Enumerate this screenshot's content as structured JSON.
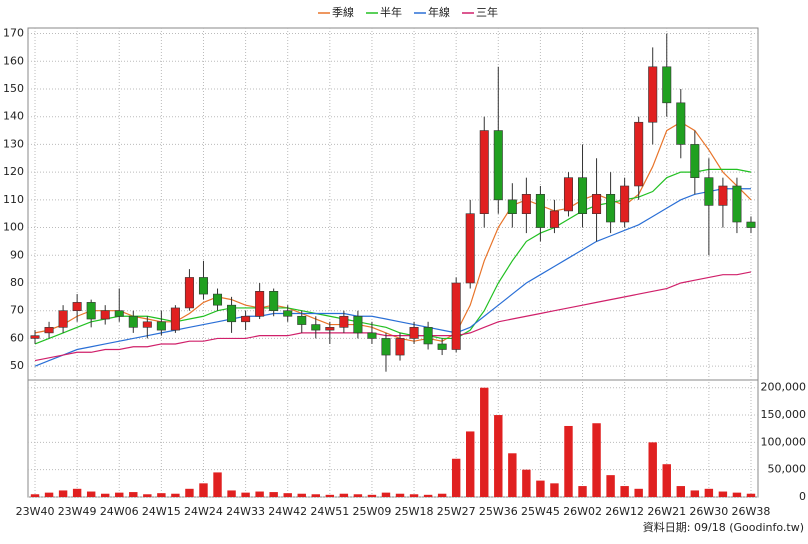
{
  "chart_data": {
    "type": "candlestick",
    "legend": [
      {
        "name": "季線",
        "color": "#e8742a"
      },
      {
        "name": "半年",
        "color": "#22c022"
      },
      {
        "name": "年線",
        "color": "#2a6fd6"
      },
      {
        "name": "三年",
        "color": "#d0206a"
      }
    ],
    "legend_position": "top",
    "categories": [
      "23W40",
      null,
      null,
      "23W49",
      null,
      null,
      "24W06",
      null,
      null,
      "24W15",
      null,
      null,
      "24W24",
      null,
      null,
      "24W33",
      null,
      null,
      "24W42",
      null,
      null,
      "24W51",
      null,
      null,
      "25W09",
      null,
      null,
      "25W18",
      null,
      null,
      "25W27",
      null,
      null,
      "25W36",
      null,
      null,
      "25W45",
      null,
      null,
      "26W02",
      null,
      null,
      "26W12",
      null,
      null,
      "26W21",
      null,
      null,
      "26W30",
      null,
      null,
      "26W38"
    ],
    "open": [
      60,
      62,
      64,
      70,
      73,
      67,
      70,
      68,
      64,
      66,
      63,
      71,
      82,
      76,
      72,
      66,
      68,
      77,
      70,
      68,
      65,
      63,
      64,
      68,
      62,
      60,
      54,
      60,
      64,
      58,
      56,
      80,
      105,
      135,
      110,
      105,
      112,
      100,
      106,
      118,
      105,
      112,
      102,
      115,
      138,
      158,
      145,
      130,
      118,
      108,
      115,
      102
    ],
    "high": [
      63,
      66,
      72,
      76,
      74,
      72,
      78,
      70,
      68,
      70,
      72,
      85,
      88,
      78,
      75,
      70,
      80,
      78,
      72,
      70,
      68,
      66,
      70,
      70,
      66,
      62,
      62,
      66,
      66,
      60,
      82,
      110,
      140,
      158,
      116,
      118,
      115,
      110,
      120,
      130,
      125,
      120,
      118,
      140,
      165,
      170,
      150,
      135,
      125,
      118,
      118,
      104
    ],
    "low": [
      58,
      60,
      62,
      66,
      64,
      65,
      66,
      62,
      60,
      61,
      62,
      70,
      74,
      70,
      62,
      63,
      67,
      68,
      66,
      62,
      60,
      58,
      62,
      60,
      58,
      48,
      52,
      58,
      56,
      54,
      55,
      78,
      100,
      105,
      100,
      98,
      95,
      98,
      104,
      100,
      95,
      98,
      100,
      110,
      130,
      140,
      125,
      112,
      90,
      100,
      98,
      98
    ],
    "close": [
      61,
      64,
      70,
      73,
      67,
      70,
      68,
      64,
      66,
      63,
      71,
      82,
      76,
      72,
      66,
      68,
      77,
      70,
      68,
      65,
      63,
      64,
      68,
      62,
      60,
      54,
      60,
      64,
      58,
      56,
      80,
      105,
      135,
      110,
      105,
      112,
      100,
      106,
      118,
      105,
      112,
      102,
      115,
      138,
      158,
      145,
      130,
      118,
      108,
      115,
      102,
      100
    ],
    "up_color": "#e02020",
    "down_color": "#20a020",
    "ma_series": [
      {
        "name": "季線",
        "color": "#e8742a",
        "values": [
          62,
          63,
          65,
          68,
          70,
          70,
          70,
          68,
          67,
          66,
          66,
          69,
          73,
          75,
          74,
          72,
          71,
          72,
          71,
          69,
          67,
          65,
          65,
          65,
          64,
          62,
          60,
          59,
          60,
          59,
          62,
          72,
          88,
          100,
          108,
          110,
          108,
          106,
          107,
          110,
          112,
          110,
          108,
          112,
          122,
          135,
          138,
          135,
          128,
          120,
          115,
          110
        ]
      },
      {
        "name": "半年",
        "color": "#22c022",
        "values": [
          58,
          60,
          62,
          64,
          66,
          67,
          68,
          68,
          68,
          67,
          66,
          67,
          68,
          70,
          71,
          71,
          71,
          71,
          71,
          70,
          69,
          68,
          67,
          66,
          65,
          64,
          62,
          61,
          61,
          60,
          60,
          63,
          70,
          80,
          88,
          95,
          98,
          100,
          103,
          106,
          108,
          109,
          110,
          111,
          113,
          118,
          120,
          120,
          121,
          121,
          121,
          120
        ]
      },
      {
        "name": "年線",
        "color": "#2a6fd6",
        "values": [
          50,
          52,
          54,
          56,
          57,
          58,
          59,
          60,
          61,
          62,
          63,
          64,
          65,
          66,
          67,
          68,
          68,
          69,
          69,
          69,
          69,
          69,
          69,
          68,
          68,
          67,
          66,
          65,
          64,
          63,
          62,
          64,
          68,
          72,
          76,
          80,
          83,
          86,
          89,
          92,
          95,
          97,
          99,
          101,
          104,
          107,
          110,
          112,
          113,
          114,
          114,
          114
        ]
      },
      {
        "name": "三年",
        "color": "#d0206a",
        "values": [
          52,
          53,
          54,
          55,
          55,
          56,
          56,
          57,
          57,
          58,
          58,
          59,
          59,
          60,
          60,
          60,
          61,
          61,
          61,
          62,
          62,
          62,
          62,
          62,
          62,
          61,
          61,
          61,
          61,
          61,
          61,
          62,
          64,
          66,
          67,
          68,
          69,
          70,
          71,
          72,
          73,
          74,
          75,
          76,
          77,
          78,
          80,
          81,
          82,
          83,
          83,
          84
        ]
      }
    ],
    "ylim": [
      45,
      172
    ],
    "yticks": [
      50,
      60,
      70,
      80,
      90,
      100,
      110,
      120,
      130,
      140,
      150,
      160,
      170
    ],
    "volume": {
      "color": "#e02020",
      "values": [
        5000,
        8000,
        12000,
        15000,
        10000,
        6000,
        8000,
        9000,
        5000,
        7000,
        6000,
        15000,
        25000,
        45000,
        12000,
        8000,
        10000,
        9000,
        7000,
        6000,
        5000,
        4000,
        6000,
        5000,
        4000,
        8000,
        6000,
        5000,
        4000,
        6000,
        70000,
        120000,
        200000,
        150000,
        80000,
        50000,
        30000,
        25000,
        130000,
        20000,
        135000,
        40000,
        20000,
        15000,
        100000,
        60000,
        20000,
        12000,
        15000,
        10000,
        8000,
        6000
      ],
      "ylim": [
        0,
        205000
      ],
      "yticks": [
        0,
        {
          "value": 50000,
          "label": "50,000"
        },
        {
          "value": 100000,
          "label": "100,000"
        },
        {
          "value": 150000,
          "label": "150,000"
        },
        {
          "value": 200000,
          "label": "200,000"
        }
      ]
    },
    "grid": true,
    "note": "資料日期: 09/18 (Goodinfo.tw)"
  }
}
